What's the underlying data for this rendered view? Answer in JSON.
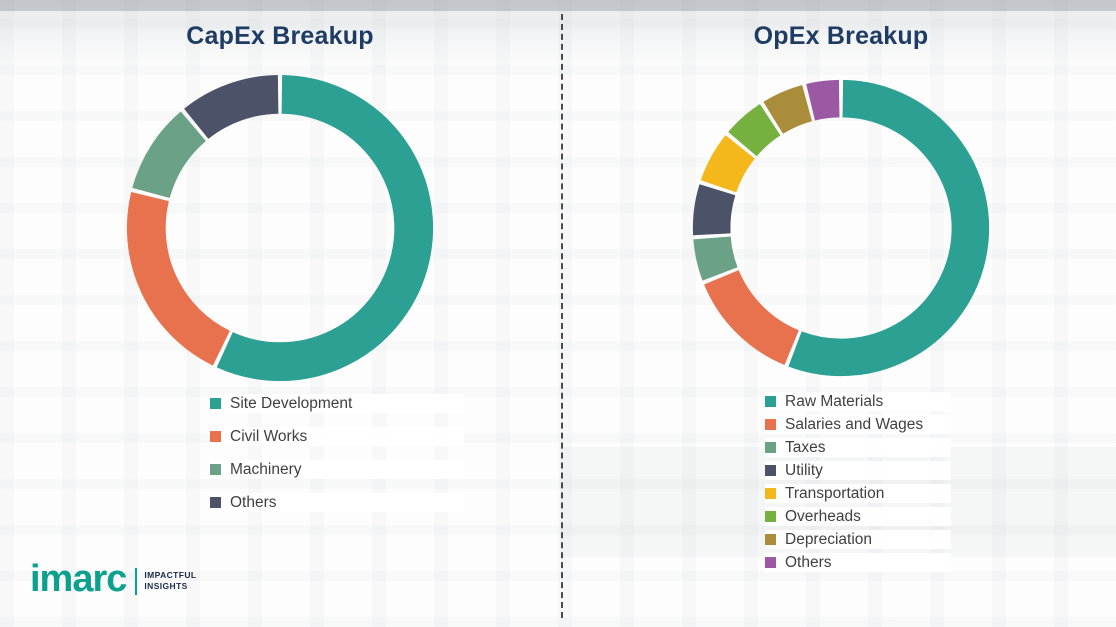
{
  "chart_data": [
    {
      "type": "pie",
      "subtype": "donut",
      "title": "CapEx Breakup",
      "labels": [
        "Site Development",
        "Civil Works",
        "Machinery",
        "Others"
      ],
      "values": [
        57,
        22,
        10,
        11
      ],
      "colors": [
        "#2BA093",
        "#E8714E",
        "#6BA287",
        "#4C5268"
      ],
      "legend_position": "bottom"
    },
    {
      "type": "pie",
      "subtype": "donut",
      "title": "OpEx Breakup",
      "labels": [
        "Raw Materials",
        "Salaries and Wages",
        "Taxes",
        "Utility",
        "Transportation",
        "Overheads",
        "Depreciation",
        "Others"
      ],
      "values": [
        56,
        13,
        5,
        6,
        6,
        5,
        5,
        4
      ],
      "colors": [
        "#2BA093",
        "#E8714E",
        "#6BA287",
        "#4C5268",
        "#F5B81C",
        "#76B13F",
        "#A98D3B",
        "#9C59A3"
      ],
      "legend_position": "bottom"
    }
  ],
  "brand": {
    "name": "imarc",
    "tagline_line1": "IMPACTFUL",
    "tagline_line2": "INSIGHTS",
    "color": "#0CA08E"
  },
  "style_colors": {
    "title_text": "#1E3C64",
    "legend_text": "#404040",
    "divider": "#4A4A4A"
  }
}
